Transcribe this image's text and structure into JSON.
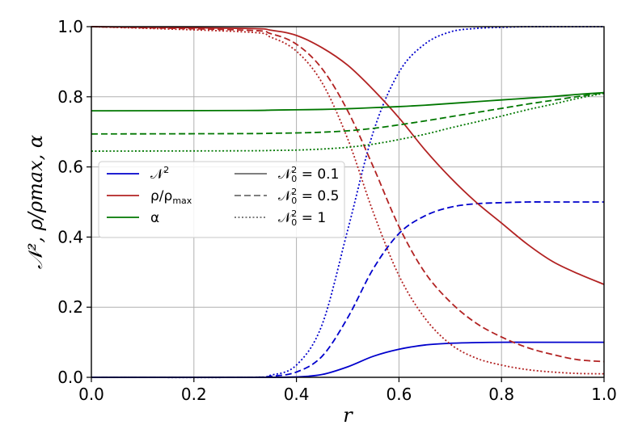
{
  "chart_data": {
    "type": "line",
    "xlabel": "r",
    "ylabel": "𝒩², ρ/ρmax, α",
    "xlim": [
      0.0,
      1.0
    ],
    "ylim": [
      0.0,
      1.0
    ],
    "grid": true,
    "legend_placement": "center-left",
    "x_ticks": [
      "0.0",
      "0.2",
      "0.4",
      "0.6",
      "0.8",
      "1.0"
    ],
    "y_ticks": [
      "0.0",
      "0.2",
      "0.4",
      "0.6",
      "0.8",
      "1.0"
    ],
    "quantities": [
      {
        "key": "N2",
        "label": "𝒩²",
        "color": "#0000cc"
      },
      {
        "key": "rho",
        "label": "ρ/ρmax",
        "color": "#b22222"
      },
      {
        "key": "alpha",
        "label": "α",
        "color": "#007700"
      }
    ],
    "cases": [
      {
        "label": "𝒩₀² = 0.1",
        "value": 0.1,
        "dash": "solid"
      },
      {
        "label": "𝒩₀² = 0.5",
        "value": 0.5,
        "dash": "dashed"
      },
      {
        "label": "𝒩₀² = 1",
        "value": 1,
        "dash": "dotted"
      }
    ],
    "x": [
      0.0,
      0.3,
      0.35,
      0.4,
      0.45,
      0.5,
      0.55,
      0.6,
      0.65,
      0.7,
      0.75,
      0.8,
      0.85,
      0.9,
      0.95,
      1.0
    ],
    "series": [
      {
        "quantity": "N2",
        "case": "0.1",
        "values": [
          0.0,
          0.0,
          0.0,
          0.001,
          0.008,
          0.03,
          0.06,
          0.08,
          0.092,
          0.097,
          0.099,
          0.1,
          0.1,
          0.1,
          0.1,
          0.1
        ]
      },
      {
        "quantity": "N2",
        "case": "0.5",
        "values": [
          0.0,
          0.0,
          0.003,
          0.015,
          0.06,
          0.17,
          0.31,
          0.41,
          0.46,
          0.485,
          0.495,
          0.498,
          0.5,
          0.5,
          0.5,
          0.5
        ]
      },
      {
        "quantity": "N2",
        "case": "1",
        "values": [
          0.0,
          0.0,
          0.006,
          0.035,
          0.15,
          0.42,
          0.7,
          0.87,
          0.95,
          0.985,
          0.995,
          0.998,
          1.0,
          1.0,
          1.0,
          1.0
        ]
      },
      {
        "quantity": "rho",
        "case": "0.1",
        "values": [
          1.0,
          0.995,
          0.99,
          0.975,
          0.94,
          0.89,
          0.82,
          0.74,
          0.65,
          0.57,
          0.5,
          0.44,
          0.38,
          0.33,
          0.295,
          0.265
        ]
      },
      {
        "quantity": "rho",
        "case": "0.5",
        "values": [
          1.0,
          0.99,
          0.98,
          0.95,
          0.88,
          0.76,
          0.6,
          0.43,
          0.3,
          0.215,
          0.155,
          0.115,
          0.085,
          0.065,
          0.05,
          0.045
        ]
      },
      {
        "quantity": "rho",
        "case": "1",
        "values": [
          1.0,
          0.985,
          0.97,
          0.93,
          0.84,
          0.68,
          0.47,
          0.29,
          0.17,
          0.095,
          0.055,
          0.035,
          0.022,
          0.015,
          0.011,
          0.01
        ]
      },
      {
        "quantity": "alpha",
        "case": "0.1",
        "values": [
          0.76,
          0.761,
          0.762,
          0.763,
          0.764,
          0.766,
          0.769,
          0.772,
          0.776,
          0.781,
          0.786,
          0.791,
          0.796,
          0.801,
          0.807,
          0.812
        ]
      },
      {
        "quantity": "alpha",
        "case": "0.5",
        "values": [
          0.694,
          0.695,
          0.696,
          0.697,
          0.699,
          0.703,
          0.71,
          0.72,
          0.731,
          0.743,
          0.755,
          0.767,
          0.779,
          0.79,
          0.801,
          0.812
        ]
      },
      {
        "quantity": "alpha",
        "case": "1",
        "values": [
          0.645,
          0.646,
          0.647,
          0.648,
          0.651,
          0.656,
          0.665,
          0.678,
          0.693,
          0.711,
          0.728,
          0.745,
          0.763,
          0.779,
          0.796,
          0.81
        ]
      }
    ]
  },
  "legend": {
    "quantity_labels": [
      {
        "base": "𝒩",
        "sup": "2",
        "sub": ""
      },
      {
        "base": "ρ/ρ",
        "sup": "",
        "sub": "max"
      },
      {
        "base": "α",
        "sup": "",
        "sub": ""
      }
    ],
    "case_labels": [
      {
        "base": "𝒩",
        "sup": "2",
        "sub": "0",
        "rest": " = 0.1"
      },
      {
        "base": "𝒩",
        "sup": "2",
        "sub": "0",
        "rest": " = 0.5"
      },
      {
        "base": "𝒩",
        "sup": "2",
        "sub": "0",
        "rest": " = 1"
      }
    ]
  }
}
